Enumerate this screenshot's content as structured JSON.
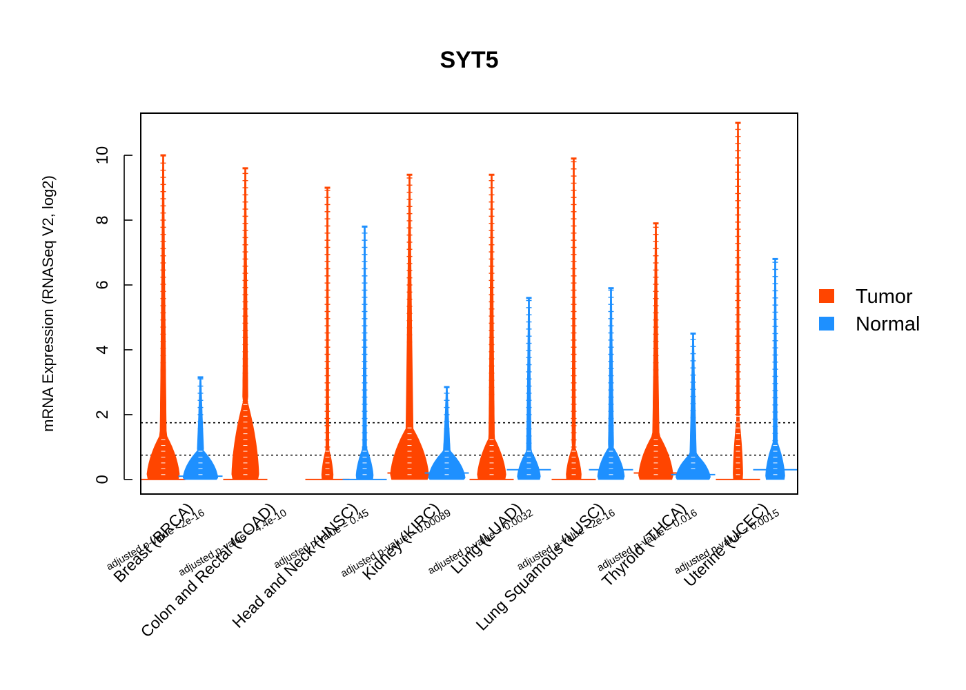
{
  "chart_data": {
    "type": "violin",
    "title": "SYT5",
    "ylabel": "mRNA Expression (RNASeq V2, log2)",
    "xlabel": "",
    "ylim": [
      -0.45,
      11.3
    ],
    "yticks": [
      0,
      2,
      4,
      6,
      8,
      10
    ],
    "reference_lines": [
      0.75,
      1.75
    ],
    "grid": false,
    "legend_position": "right",
    "series": [
      {
        "name": "Tumor",
        "color": "#ff4500"
      },
      {
        "name": "Normal",
        "color": "#1e90ff"
      }
    ],
    "categories": [
      {
        "label": "Breast (BRCA)",
        "pvalue": "adjusted p-value <2e-16",
        "tumor": {
          "min": 0,
          "max": 10.0,
          "median": 0,
          "core_max": 1.4,
          "core_width": 0.85
        },
        "normal": {
          "min": 0,
          "max": 3.15,
          "median": 0.1,
          "core_max": 0.9,
          "core_width": 0.9
        }
      },
      {
        "label": "Colon and Rectal (COAD)",
        "pvalue": "adjusted p-value = 4.4e-10",
        "tumor": {
          "min": 0,
          "max": 9.6,
          "median": 0,
          "core_max": 2.4,
          "core_width": 0.7
        }
      },
      {
        "label": "Head and Neck (HNSC)",
        "pvalue": "adjusted p-value = 0.45",
        "tumor": {
          "min": 0,
          "max": 9.0,
          "median": 0,
          "core_max": 1.0,
          "core_width": 0.3
        },
        "normal": {
          "min": 0,
          "max": 7.8,
          "median": 0,
          "core_max": 1.0,
          "core_width": 0.45
        }
      },
      {
        "label": "Kidney (KIRC)",
        "pvalue": "adjusted p-value = 0.00089",
        "tumor": {
          "min": 0,
          "max": 9.4,
          "median": 0.2,
          "core_max": 1.6,
          "core_width": 1.0
        },
        "normal": {
          "min": 0,
          "max": 2.85,
          "median": 0.2,
          "core_max": 0.9,
          "core_width": 0.95
        }
      },
      {
        "label": "Lung (LUAD)",
        "pvalue": "adjusted p-value = 0.0032",
        "tumor": {
          "min": 0,
          "max": 9.4,
          "median": 0,
          "core_max": 1.3,
          "core_width": 0.75
        },
        "normal": {
          "min": 0,
          "max": 5.6,
          "median": 0.3,
          "core_max": 0.9,
          "core_width": 0.6
        }
      },
      {
        "label": "Lung Squamous (LUSC)",
        "pvalue": "adjusted p-value <2e-16",
        "tumor": {
          "min": 0,
          "max": 9.9,
          "median": 0,
          "core_max": 1.0,
          "core_width": 0.4
        },
        "normal": {
          "min": 0,
          "max": 5.9,
          "median": 0.3,
          "core_max": 1.0,
          "core_width": 0.7
        }
      },
      {
        "label": "Thyroid (THCA)",
        "pvalue": "adjusted p-value = 0.016",
        "tumor": {
          "min": 0,
          "max": 7.9,
          "median": 0.2,
          "core_max": 1.4,
          "core_width": 0.9
        },
        "normal": {
          "min": 0,
          "max": 4.5,
          "median": 0.15,
          "core_max": 0.8,
          "core_width": 0.9
        }
      },
      {
        "label": "Uterine (UCEC)",
        "pvalue": "adjusted p-value = 0.0015",
        "tumor": {
          "min": 0,
          "max": 11.0,
          "median": 0,
          "core_max": 2.0,
          "core_width": 0.25
        },
        "normal": {
          "min": 0,
          "max": 6.8,
          "median": 0.3,
          "core_max": 1.2,
          "core_width": 0.5
        }
      }
    ]
  }
}
